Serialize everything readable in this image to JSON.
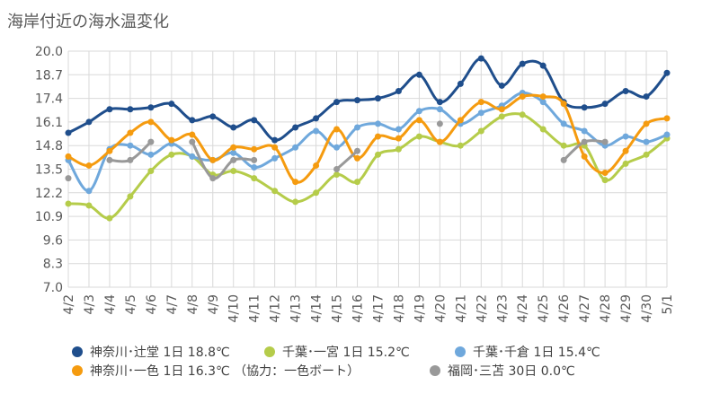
{
  "chart_data": {
    "type": "line",
    "title": "海岸付近の海水温変化",
    "x": [
      "4/2",
      "4/3",
      "4/4",
      "4/5",
      "4/6",
      "4/7",
      "4/8",
      "4/9",
      "4/10",
      "4/11",
      "4/12",
      "4/13",
      "4/14",
      "4/15",
      "4/16",
      "4/17",
      "4/18",
      "4/19",
      "4/20",
      "4/21",
      "4/22",
      "4/23",
      "4/24",
      "4/25",
      "4/26",
      "4/27",
      "4/28",
      "4/29",
      "4/30",
      "5/1"
    ],
    "ylim": [
      7.0,
      20.0
    ],
    "yticks": [
      "7.0",
      "8.3",
      "9.6",
      "10.9",
      "12.2",
      "13.5",
      "14.8",
      "16.1",
      "17.4",
      "18.7",
      "20.0"
    ],
    "grid": true,
    "legend_position": "bottom",
    "series": [
      {
        "name": "神奈川･辻堂 1日 18.8℃",
        "color": "#1f4e8c",
        "values": [
          15.5,
          16.1,
          16.8,
          16.8,
          16.9,
          17.1,
          16.2,
          16.4,
          15.8,
          16.2,
          15.1,
          15.8,
          16.3,
          17.2,
          17.3,
          17.4,
          17.8,
          18.7,
          17.2,
          18.2,
          19.6,
          18.1,
          19.3,
          19.2,
          17.2,
          16.9,
          17.1,
          17.8,
          17.5,
          18.8
        ]
      },
      {
        "name": "千葉･一宮 1日 15.2℃",
        "color": "#b5cc4a",
        "values": [
          11.6,
          11.5,
          10.8,
          12.0,
          13.4,
          14.3,
          14.2,
          13.2,
          13.4,
          13.0,
          12.3,
          11.7,
          12.2,
          13.2,
          12.8,
          14.3,
          14.6,
          15.3,
          15.0,
          14.8,
          15.6,
          16.4,
          16.5,
          15.7,
          14.8,
          14.8,
          12.9,
          13.8,
          14.3,
          15.2
        ]
      },
      {
        "name": "千葉･千倉 1日 15.4℃",
        "color": "#6fa8dc",
        "values": [
          14.0,
          12.3,
          14.6,
          14.8,
          14.3,
          14.9,
          14.2,
          14.0,
          14.4,
          13.6,
          14.1,
          14.7,
          15.6,
          14.7,
          15.8,
          16.0,
          15.7,
          16.7,
          16.8,
          16.0,
          16.6,
          17.0,
          17.7,
          17.2,
          16.0,
          15.6,
          14.8,
          15.3,
          15.0,
          15.4
        ]
      },
      {
        "name": "神奈川･一色 1日 16.3℃ （協力：一色ボート）",
        "color": "#f59b0f",
        "values": [
          14.2,
          13.7,
          14.5,
          15.5,
          16.1,
          15.1,
          15.4,
          14.0,
          14.7,
          14.6,
          14.7,
          12.8,
          13.7,
          15.7,
          14.1,
          15.3,
          15.2,
          16.2,
          15.0,
          16.2,
          17.2,
          16.8,
          17.5,
          17.5,
          17.1,
          14.2,
          13.3,
          14.5,
          16.0,
          16.3
        ]
      },
      {
        "name": "福岡･三苫 30日 0.0℃",
        "color": "#999999",
        "values": [
          13.0,
          null,
          14.0,
          14.0,
          15.0,
          null,
          15.0,
          13.0,
          14.0,
          14.0,
          null,
          null,
          null,
          13.5,
          14.5,
          null,
          null,
          null,
          16.0,
          null,
          null,
          null,
          null,
          null,
          14.0,
          15.0,
          15.0,
          null,
          null,
          null
        ]
      }
    ]
  }
}
